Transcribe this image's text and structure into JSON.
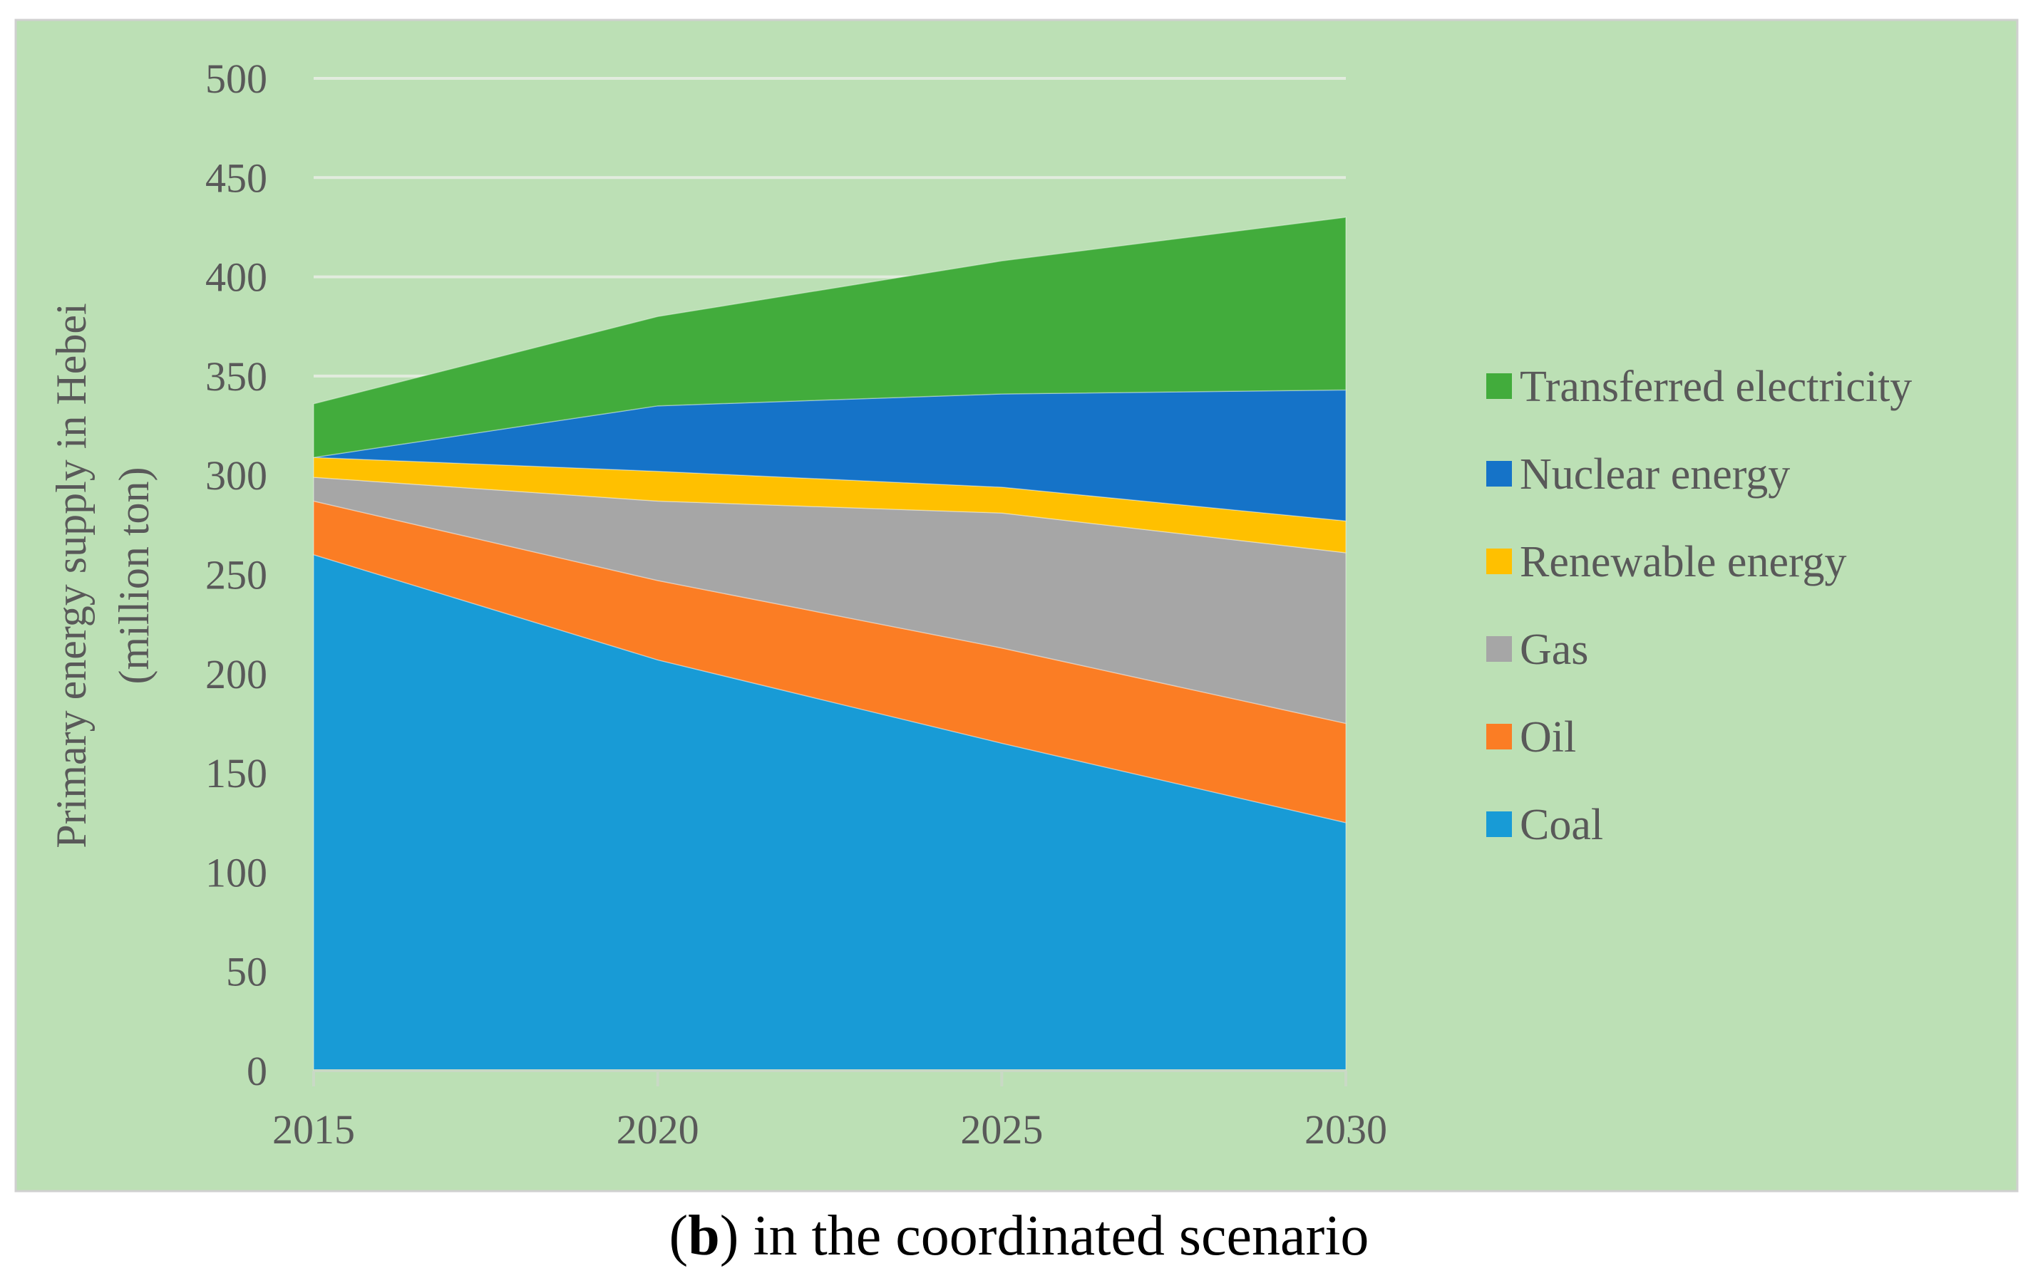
{
  "chart_data": {
    "type": "area",
    "stacked": true,
    "title": "",
    "xlabel": "",
    "ylabel_line1": "Primary energy supply in Hebei",
    "ylabel_line2": "(million ton)",
    "x": [
      "2015",
      "2020",
      "2025",
      "2030"
    ],
    "ylim": [
      0,
      500
    ],
    "yticks": [
      0,
      50,
      100,
      150,
      200,
      250,
      300,
      350,
      400,
      450,
      500
    ],
    "grid": true,
    "legend_position": "right",
    "series": [
      {
        "name": "Coal",
        "color": "#189bd6",
        "values": [
          260,
          207,
          165,
          125
        ]
      },
      {
        "name": "Oil",
        "color": "#fb7d24",
        "values": [
          27,
          40,
          48,
          50
        ]
      },
      {
        "name": "Gas",
        "color": "#a6a6a6",
        "values": [
          12,
          40,
          68,
          86
        ]
      },
      {
        "name": "Renewable energy",
        "color": "#ffc000",
        "values": [
          10,
          15,
          13,
          16
        ]
      },
      {
        "name": "Nuclear energy",
        "color": "#1573c8",
        "values": [
          0,
          33,
          47,
          66
        ]
      },
      {
        "name": "Transferred electricity",
        "color": "#42ac3c",
        "values": [
          27,
          45,
          67,
          87
        ]
      }
    ]
  },
  "caption": {
    "letter": "b",
    "text": "in the coordinated scenario"
  },
  "colors": {
    "panel_background": "#bce0b5",
    "gridline": "#e2ecde",
    "axis": "#c9d9c5",
    "text": "#595959"
  }
}
